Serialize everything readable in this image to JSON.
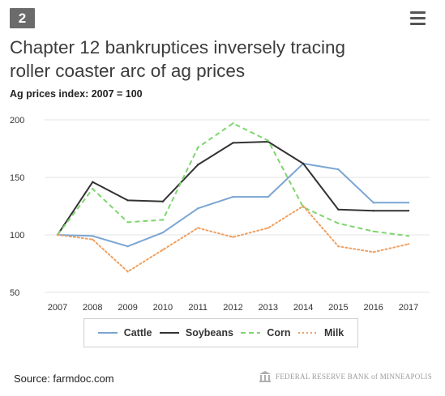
{
  "badge": "2",
  "menu_icon": "hamburger-menu-icon",
  "title_line1": "Chapter 12 bankruptices inversely tracing",
  "title_line2": "roller coaster arc of ag prices",
  "subtitle": "Ag prices index: 2007 = 100",
  "source": "Source: farmdoc.com",
  "logo_text": "FEDERAL RESERVE BANK of MINNEAPOLIS",
  "chart_data": {
    "type": "line",
    "x": [
      "2007",
      "2008",
      "2009",
      "2010",
      "2011",
      "2012",
      "2013",
      "2014",
      "2015",
      "2016",
      "2017"
    ],
    "yticks": [
      200,
      150,
      100,
      50
    ],
    "ylim": [
      50,
      200
    ],
    "grid": true,
    "legend_position": "bottom",
    "series": [
      {
        "name": "Cattle",
        "color": "#7aa6d2",
        "dash": "solid",
        "values": [
          100,
          99,
          90,
          102,
          123,
          133,
          133,
          162,
          157,
          128,
          128
        ]
      },
      {
        "name": "Soybeans",
        "color": "#333333",
        "dash": "solid",
        "values": [
          100,
          146,
          130,
          129,
          161,
          180,
          181,
          162,
          122,
          121,
          121
        ]
      },
      {
        "name": "Corn",
        "color": "#7ed56f",
        "dash": "dashed",
        "values": [
          100,
          140,
          111,
          113,
          176,
          197,
          182,
          124,
          110,
          103,
          99
        ]
      },
      {
        "name": "Milk",
        "color": "#f0a060",
        "dash": "dotted",
        "values": [
          100,
          96,
          68,
          87,
          106,
          98,
          106,
          125,
          90,
          85,
          92
        ]
      }
    ]
  }
}
